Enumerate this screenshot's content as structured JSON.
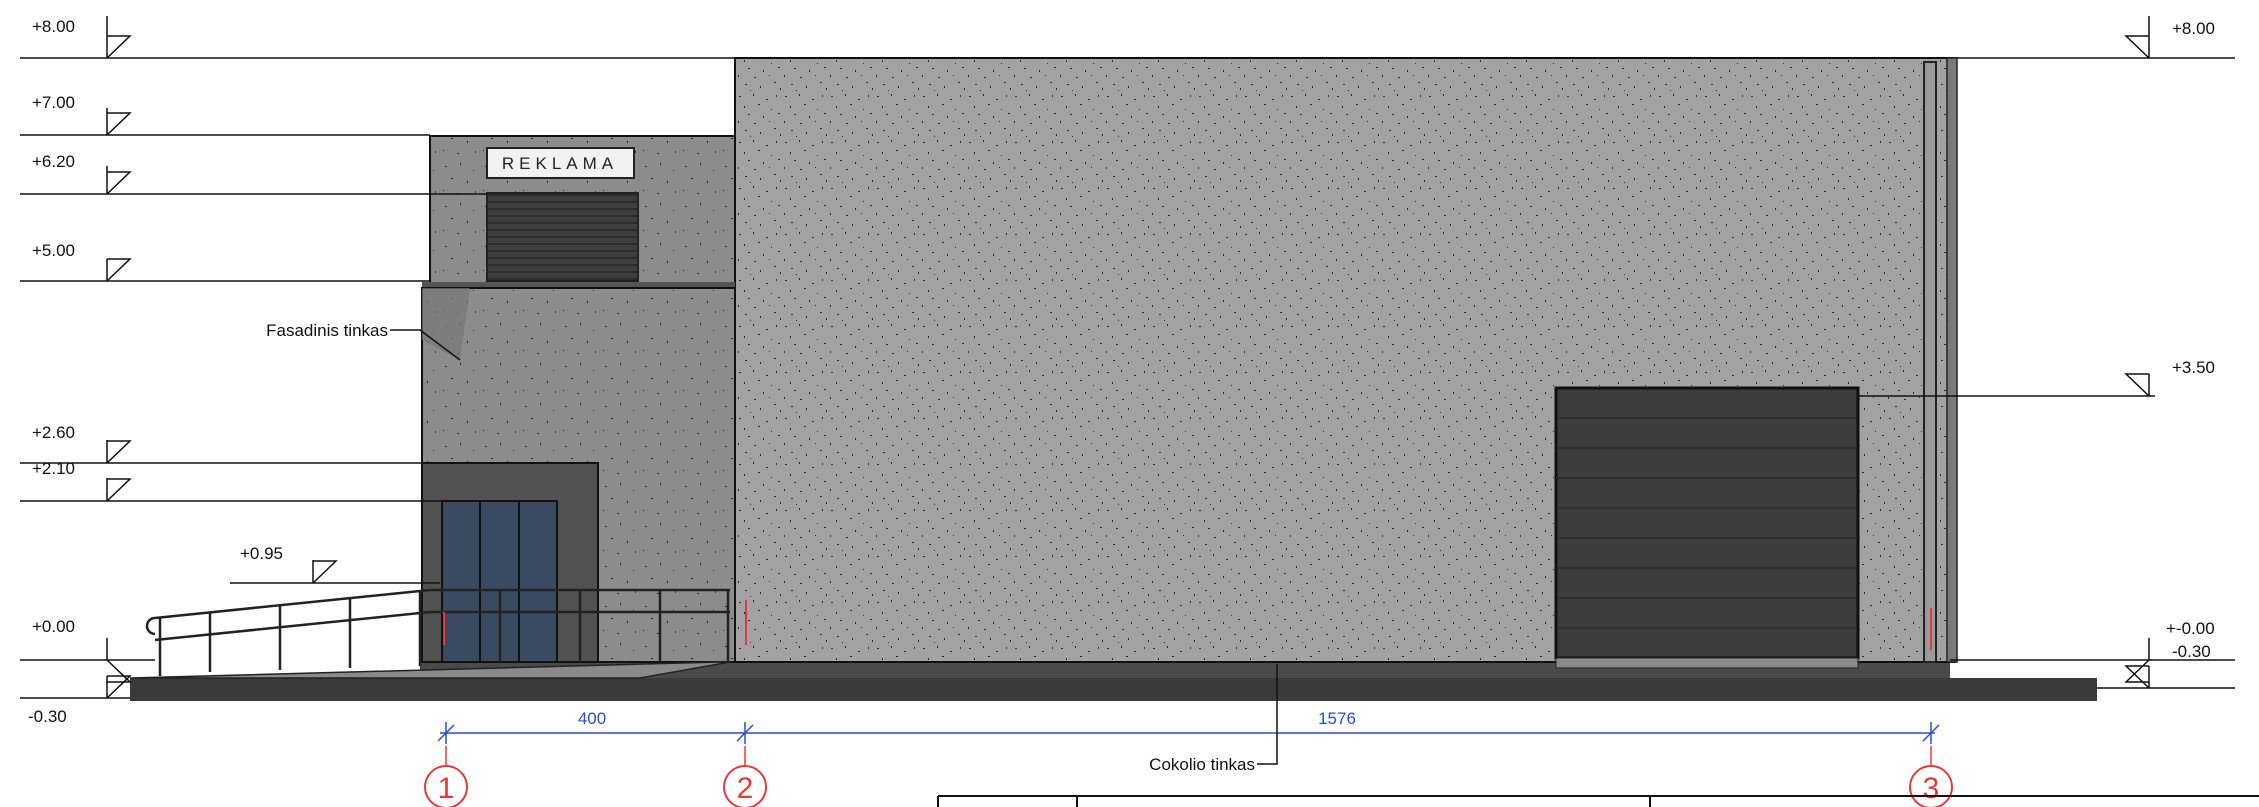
{
  "levels_left": [
    "+8.00",
    "+7.00",
    "+6.20",
    "+5.00",
    "+2.60",
    "+2.10",
    "+0.95",
    "+0.00",
    "-0.30"
  ],
  "levels_right": [
    "+8.00",
    "+3.50",
    "+-0.00",
    "-0.30"
  ],
  "dimensions": [
    "400",
    "1576"
  ],
  "axes": [
    "1",
    "2",
    "3"
  ],
  "annotations": {
    "facade_plaster": "Fasadinis tinkas",
    "plinth_plaster": "Cokolio tinkas"
  },
  "sign_text": "REKLAMA",
  "colors": {
    "line": "#111111",
    "dimension": "#2c4fbf",
    "axis_marker": "#e23a3a",
    "wall_main": "#9a9a9a",
    "wall_annex": "#8c8c8c",
    "gate": "#3c3c3c"
  }
}
